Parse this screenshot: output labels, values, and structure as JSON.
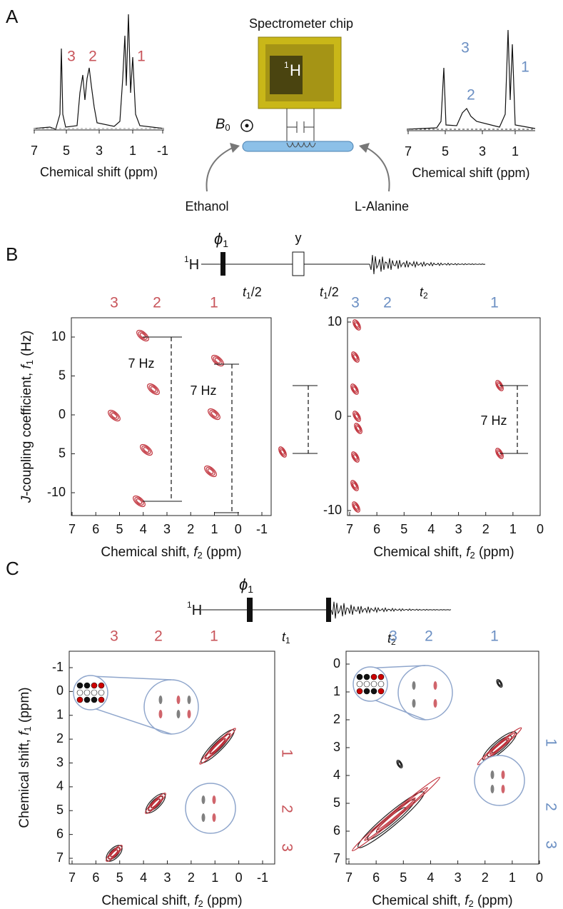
{
  "panel_a": {
    "label": "A",
    "chip_title": "Spectrometer chip",
    "chip_nucleus_mass": "1",
    "chip_nucleus": "H",
    "field": "B",
    "field_sub": "0",
    "ethanol_spectrum": {
      "peak_labels": [
        "3",
        "2",
        "1"
      ],
      "xticks": [
        "7",
        "5",
        "3",
        "1",
        "-1"
      ],
      "xlabel": "Chemical shift (ppm)"
    },
    "alanine_spectrum": {
      "peak_labels": [
        "3",
        "2",
        "1"
      ],
      "xticks": [
        "7",
        "5",
        "3",
        "1"
      ],
      "xlabel": "Chemical shift (ppm)"
    },
    "ethanol_label": "Ethanol",
    "alanine_label": "L-Alanine"
  },
  "panel_b": {
    "label": "B",
    "sequence": {
      "nucleus_mass": "1",
      "nucleus": "H",
      "phase": "ϕ",
      "phase_sub": "1",
      "pulse": "y",
      "delay1": "t",
      "delay1_sub": "1",
      "delay1_suffix": "/2",
      "delay2": "t",
      "delay2_sub": "1",
      "delay2_suffix": "/2",
      "acq": "t",
      "acq_sub": "2"
    },
    "ethanol_plot": {
      "peak_labels": [
        "3",
        "2",
        "1"
      ],
      "yticks": [
        "10",
        "5",
        "0",
        "5",
        "-10"
      ],
      "xticks": [
        "7",
        "6",
        "5",
        "4",
        "3",
        "2",
        "1",
        "0",
        "-1"
      ],
      "ylabel": {
        "j": "J",
        "text": "-coupling coefficient, ",
        "f": "f",
        "sub": "1",
        "unit": " (Hz)"
      },
      "xlabel": {
        "text": "Chemical shift, ",
        "f": "f",
        "sub": "2",
        "unit": " (ppm)"
      },
      "annotations": [
        "7 Hz",
        "7 Hz"
      ]
    },
    "alanine_plot": {
      "peak_labels": [
        "3",
        "2",
        "1"
      ],
      "yticks": [
        "10",
        "0",
        "-10"
      ],
      "xticks": [
        "7",
        "6",
        "5",
        "4",
        "3",
        "2",
        "1",
        "0"
      ],
      "xlabel": {
        "text": "Chemical shift, ",
        "f": "f",
        "sub": "2",
        "unit": " (ppm)"
      },
      "annotations": [
        "7 Hz"
      ]
    }
  },
  "panel_c": {
    "label": "C",
    "sequence": {
      "nucleus_mass": "1",
      "nucleus": "H",
      "phase": "ϕ",
      "phase_sub": "1",
      "delay": "t",
      "delay_sub": "1",
      "acq": "t",
      "acq_sub": "2"
    },
    "ethanol_plot": {
      "peak_labels": [
        "3",
        "2",
        "1"
      ],
      "side_labels": [
        "1",
        "2",
        "3"
      ],
      "yticks": [
        "-1",
        "0",
        "1",
        "2",
        "3",
        "4",
        "5",
        "6",
        "7"
      ],
      "xticks": [
        "7",
        "6",
        "5",
        "4",
        "3",
        "2",
        "1",
        "0",
        "-1"
      ],
      "ylabel": {
        "text": "Chemical shift, ",
        "f": "f",
        "sub": "1",
        "unit": " (ppm)"
      },
      "xlabel": {
        "text": "Chemical shift, ",
        "f": "f",
        "sub": "2",
        "unit": " (ppm)"
      }
    },
    "alanine_plot": {
      "peak_labels": [
        "3",
        "2",
        "1"
      ],
      "side_labels": [
        "1",
        "2",
        "3"
      ],
      "yticks": [
        "0",
        "1",
        "2",
        "3",
        "4",
        "5",
        "6",
        "7"
      ],
      "xticks": [
        "7",
        "6",
        "5",
        "4",
        "3",
        "2",
        "1",
        "0"
      ],
      "xlabel": {
        "text": "Chemical shift, ",
        "f": "f",
        "sub": "2",
        "unit": " (ppm)"
      }
    }
  }
}
